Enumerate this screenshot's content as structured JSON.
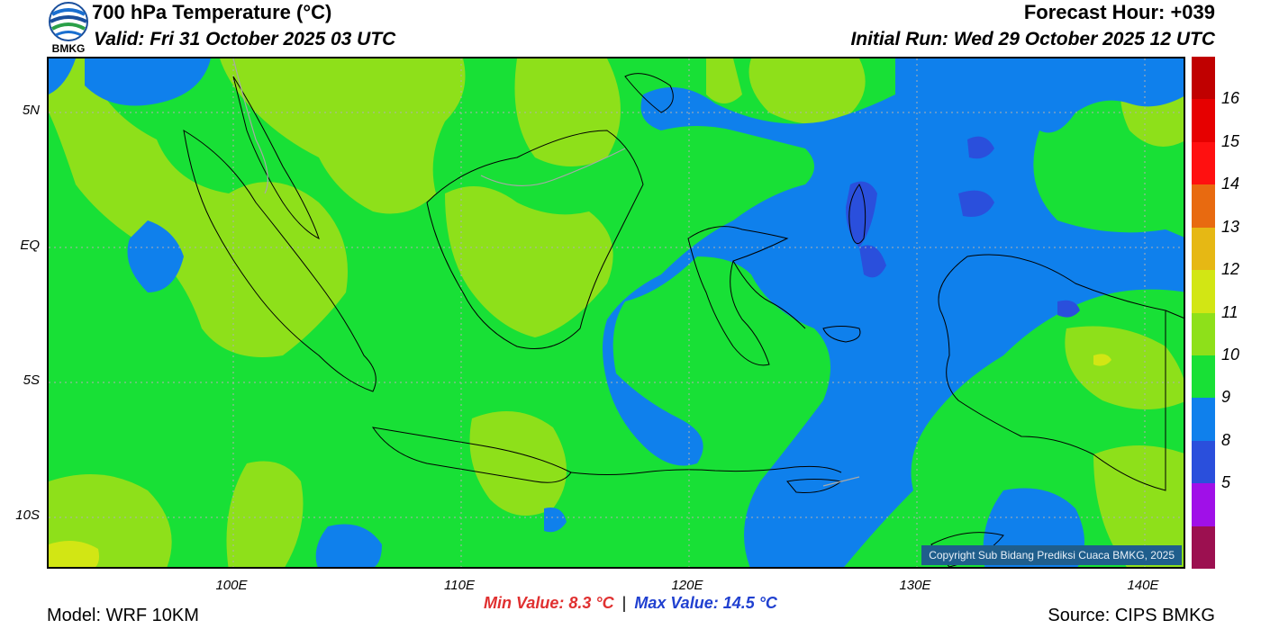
{
  "header": {
    "title": "700 hPa Temperature (°C)",
    "valid": "Valid: Fri 31 October 2025 03 UTC",
    "forecast_hour": "Forecast Hour: +039",
    "initial_run": "Initial Run: Wed 29 October 2025 12 UTC"
  },
  "logo": {
    "text": "BMKG"
  },
  "map": {
    "copyright": "Copyright Sub Bidang Prediksi Cuaca BMKG, 2025",
    "lat_labels": [
      "5N",
      "EQ",
      "5S",
      "10S"
    ],
    "lon_labels": [
      "100E",
      "110E",
      "120E",
      "130E",
      "140E"
    ],
    "colors": {
      "green": "#18e036",
      "light_green": "#8ee01a",
      "blue": "#0f80ec",
      "dark_blue": "#2a4fdc",
      "yellow_green": "#d2e614"
    }
  },
  "colorbar": {
    "labels": [
      "16",
      "15",
      "14",
      "13",
      "12",
      "11",
      "10",
      "9",
      "8",
      "5"
    ],
    "colors": [
      "#c00000",
      "#e60000",
      "#ff1010",
      "#e86a10",
      "#e6b814",
      "#d2e614",
      "#8ee01a",
      "#18e036",
      "#0f80ec",
      "#2a4fdc",
      "#a010e8",
      "#9c1050"
    ]
  },
  "footer": {
    "model": "Model: WRF 10KM",
    "source": "Source: CIPS BMKG",
    "min_value": "Min Value: 8.3 °C",
    "separator": "|",
    "max_value": "Max Value: 14.5 °C"
  }
}
